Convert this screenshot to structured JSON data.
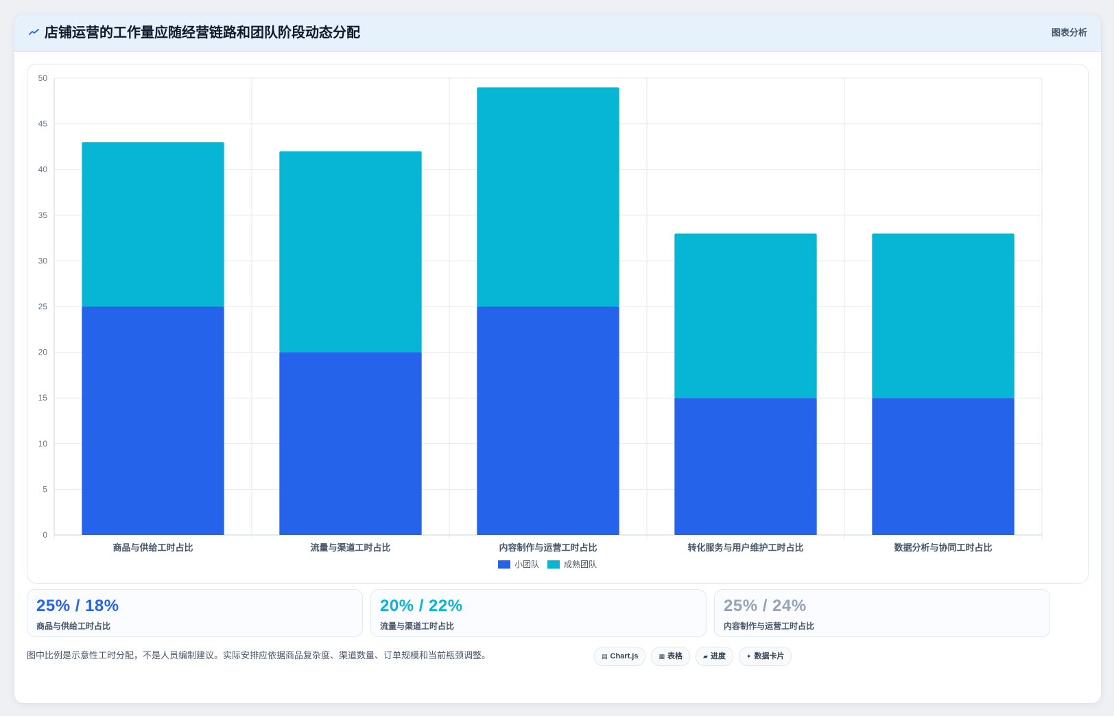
{
  "header": {
    "title": "店铺运营的工作量应随经营链路和团队阶段动态分配",
    "link": "图表分析"
  },
  "colors": {
    "small_team": "#2563eb",
    "mature_team": "#06b6d4",
    "stat_1": "#2563eb",
    "stat_2": "#06b6d4",
    "stat_3": "#94a3b8"
  },
  "chart_data": {
    "type": "bar",
    "stacked": true,
    "categories": [
      "商品与供给工时占比",
      "流量与渠道工时占比",
      "内容制作与运营工时占比",
      "转化服务与用户维护工时占比",
      "数据分析与协同工时占比"
    ],
    "series": [
      {
        "name": "小团队",
        "values": [
          25,
          20,
          25,
          15,
          15
        ]
      },
      {
        "name": "成熟团队",
        "values": [
          18,
          22,
          24,
          18,
          18
        ]
      }
    ],
    "ylim": [
      0,
      50
    ],
    "yticks": [
      0,
      5,
      10,
      15,
      20,
      25,
      30,
      35,
      40,
      45,
      50
    ],
    "grid": true,
    "legend": "bottom"
  },
  "stats": [
    {
      "value": "25% / 18%",
      "label": "商品与供给工时占比"
    },
    {
      "value": "20% / 22%",
      "label": "流量与渠道工时占比"
    },
    {
      "value": "25% / 24%",
      "label": "内容制作与运营工时占比"
    }
  ],
  "note": "图中比例是示意性工时分配，不是人员编制建议。实际安排应依据商品复杂度、渠道数量、订单规模和当前瓶颈调整。",
  "pills": [
    {
      "icon": "chart-icon",
      "glyph": "▤",
      "label": "Chart.js"
    },
    {
      "icon": "table-icon",
      "glyph": "▦",
      "label": "表格"
    },
    {
      "icon": "progress-icon",
      "glyph": "▰",
      "label": "进度"
    },
    {
      "icon": "sparkle-icon",
      "glyph": "✦",
      "label": "数据卡片"
    }
  ]
}
